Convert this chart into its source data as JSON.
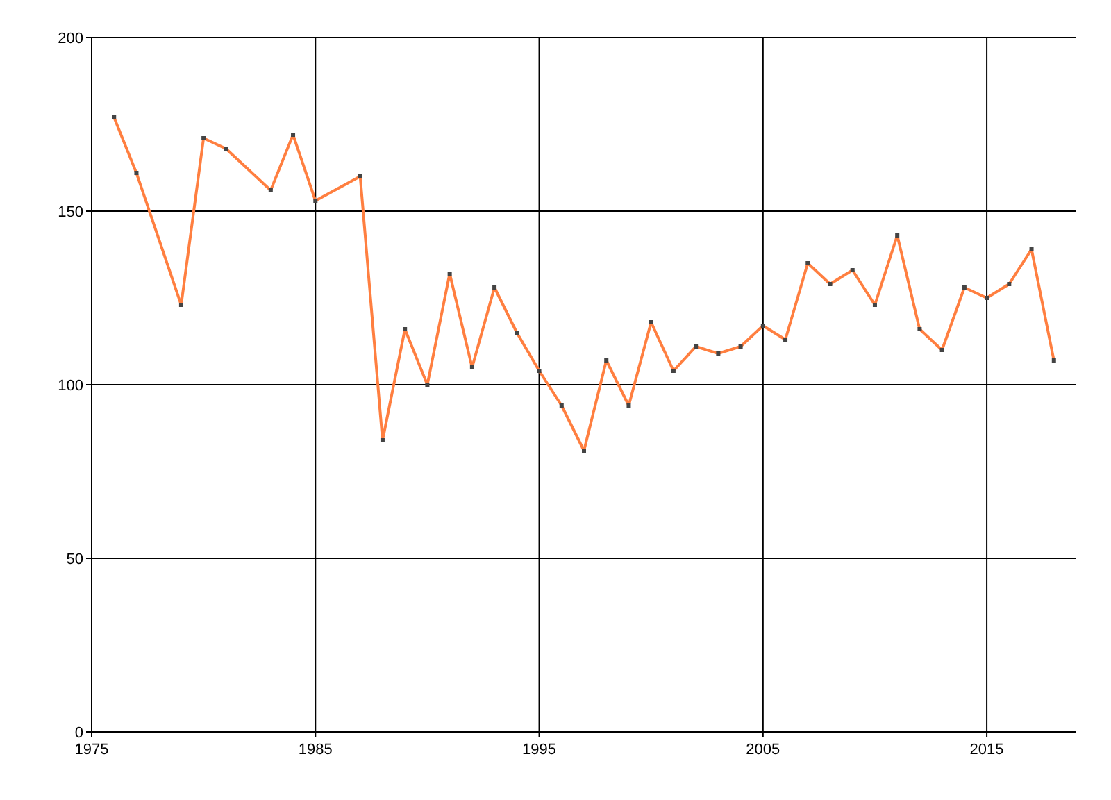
{
  "chart_data": {
    "type": "line",
    "x": [
      1976,
      1977,
      1979,
      1980,
      1981,
      1983,
      1984,
      1985,
      1987,
      1988,
      1989,
      1990,
      1991,
      1992,
      1993,
      1994,
      1995,
      1996,
      1997,
      1998,
      1999,
      2000,
      2001,
      2002,
      2003,
      2004,
      2005,
      2006,
      2007,
      2008,
      2009,
      2010,
      2011,
      2012,
      2013,
      2014,
      2015,
      2016,
      2017,
      2018
    ],
    "series": [
      {
        "color": "#ff7f40",
        "values": [
          177,
          161,
          123,
          171,
          168,
          156,
          172,
          153,
          160,
          84,
          116,
          100,
          132,
          105,
          128,
          115,
          104,
          94,
          81,
          107,
          94,
          118,
          104,
          111,
          109,
          111,
          117,
          113,
          135,
          129,
          133,
          123,
          143,
          116,
          110,
          128,
          125,
          129,
          139,
          107
        ]
      }
    ],
    "xlim": [
      1975,
      2019
    ],
    "xticks": [
      1975,
      1985,
      1995,
      2005,
      2015
    ],
    "ylim": [
      0,
      200
    ],
    "yticks": [
      0,
      50,
      100,
      150,
      200
    ],
    "grid": true,
    "marker": "square",
    "line_style": "solid"
  }
}
